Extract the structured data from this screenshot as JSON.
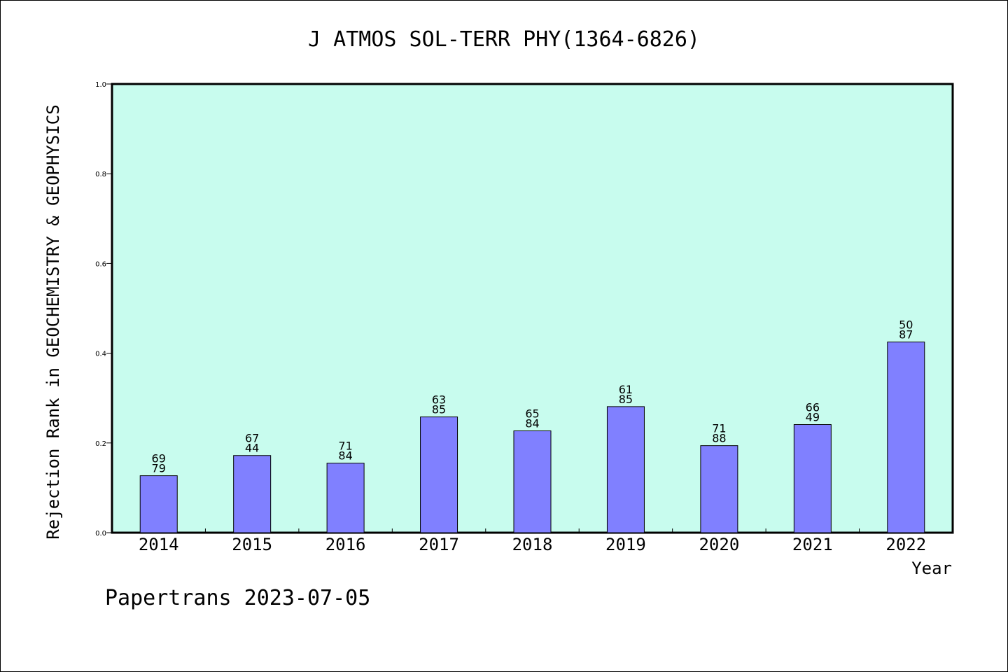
{
  "footer": "Papertrans 2023-07-05",
  "chart_data": {
    "type": "bar",
    "title": "J ATMOS SOL-TERR PHY(1364-6826)",
    "xlabel": "Year",
    "ylabel": "Rejection Rank in GEOCHEMISTRY & GEOPHYSICS",
    "categories": [
      "2014",
      "2015",
      "2016",
      "2017",
      "2018",
      "2019",
      "2020",
      "2021",
      "2022"
    ],
    "values": [
      0.127,
      0.172,
      0.155,
      0.258,
      0.227,
      0.281,
      0.194,
      0.241,
      0.425
    ],
    "bar_labels": [
      [
        "69",
        "79"
      ],
      [
        "67",
        "44"
      ],
      [
        "71",
        "84"
      ],
      [
        "63",
        "85"
      ],
      [
        "65",
        "84"
      ],
      [
        "61",
        "85"
      ],
      [
        "71",
        "88"
      ],
      [
        "66",
        "49"
      ],
      [
        "50",
        "87"
      ]
    ],
    "ylim": [
      0,
      1.0
    ],
    "yticks": [
      "0.0",
      "0.2",
      "0.4",
      "0.6",
      "0.8",
      "1.0"
    ],
    "grid": false,
    "colors": {
      "plot_background": "#c8fcee",
      "bar_fill": "#8080ff",
      "bar_stroke": "#000000"
    }
  }
}
